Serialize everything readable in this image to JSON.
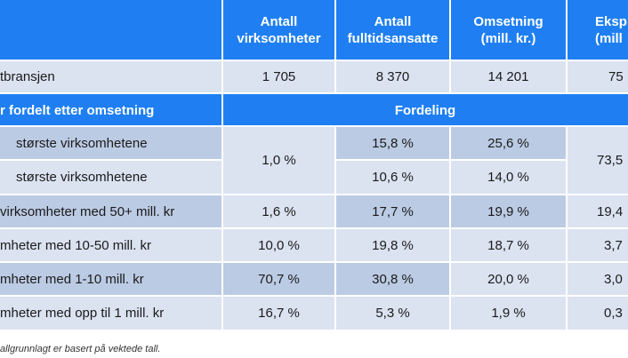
{
  "header": {
    "col1": [
      "Antall",
      "virksomheter"
    ],
    "col2": [
      "Antall",
      "fulltidsansatte"
    ],
    "col3": [
      "Omsetning",
      "(mill. kr.)"
    ],
    "col4": [
      "Eksp",
      "(mill"
    ]
  },
  "total_row": {
    "label": "tbransjen",
    "values": [
      "1 705",
      "8 370",
      "14 201",
      "75"
    ]
  },
  "section": {
    "label": "r fordelt etter omsetning",
    "fordeling": "Fordeling"
  },
  "rows": [
    {
      "label": "største virksomhetene",
      "c2": "15,8 %",
      "c3": "25,6 %"
    },
    {
      "label": "største virksomhetene",
      "c2": "10,6 %",
      "c3": "14,0 %"
    },
    {
      "label": "virksomheter med 50+ mill. kr",
      "c1": "1,6 %",
      "c2": "17,7 %",
      "c3": "19,9 %",
      "c4": "19,4"
    },
    {
      "label": "mheter med 10-50 mill. kr",
      "c1": "10,0 %",
      "c2": "19,8 %",
      "c3": "18,7 %",
      "c4": "3,7"
    },
    {
      "label": "mheter med 1-10 mill. kr",
      "c1": "70,7 %",
      "c2": "30,8 %",
      "c3": "20,0 %",
      "c4": "3,0"
    },
    {
      "label": "mheter med opp til 1 mill. kr",
      "c1": "16,7 %",
      "c2": "5,3 %",
      "c3": "1,9 %",
      "c4": "0,3"
    }
  ],
  "merged": {
    "c1_top": "1,0 %",
    "c4_top": "73,5"
  },
  "footnote": "allgrunnlagt er basert på vektede tall."
}
